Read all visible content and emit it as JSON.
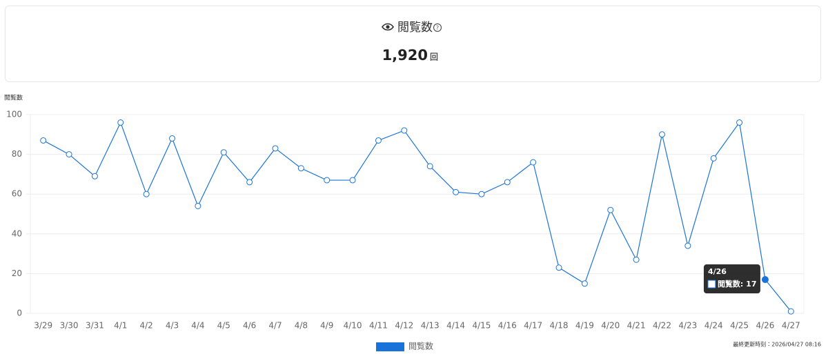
{
  "summary": {
    "label": "閲覧数",
    "value": "1,920",
    "unit": "回"
  },
  "chart_data": {
    "type": "line",
    "y_label": "閲覧数",
    "categories": [
      "3/29",
      "3/30",
      "3/31",
      "4/1",
      "4/2",
      "4/3",
      "4/4",
      "4/5",
      "4/6",
      "4/7",
      "4/8",
      "4/9",
      "4/10",
      "4/11",
      "4/12",
      "4/13",
      "4/14",
      "4/15",
      "4/16",
      "4/17",
      "4/18",
      "4/19",
      "4/20",
      "4/21",
      "4/22",
      "4/23",
      "4/24",
      "4/25",
      "4/26",
      "4/27"
    ],
    "series": [
      {
        "name": "閲覧数",
        "color": "#1a73d9",
        "values": [
          87,
          80,
          69,
          96,
          60,
          88,
          54,
          81,
          66,
          83,
          73,
          67,
          67,
          87,
          92,
          74,
          61,
          60,
          66,
          76,
          23,
          15,
          52,
          27,
          90,
          34,
          78,
          96,
          17,
          1
        ]
      }
    ],
    "ylim": [
      0,
      100
    ],
    "yticks": [
      0,
      20,
      40,
      60,
      80,
      100
    ],
    "grid": true,
    "tooltip": {
      "title": "4/26",
      "text": "閲覧数: 17"
    }
  },
  "footer": "最終更新時刻：2026/04/27 08:16"
}
